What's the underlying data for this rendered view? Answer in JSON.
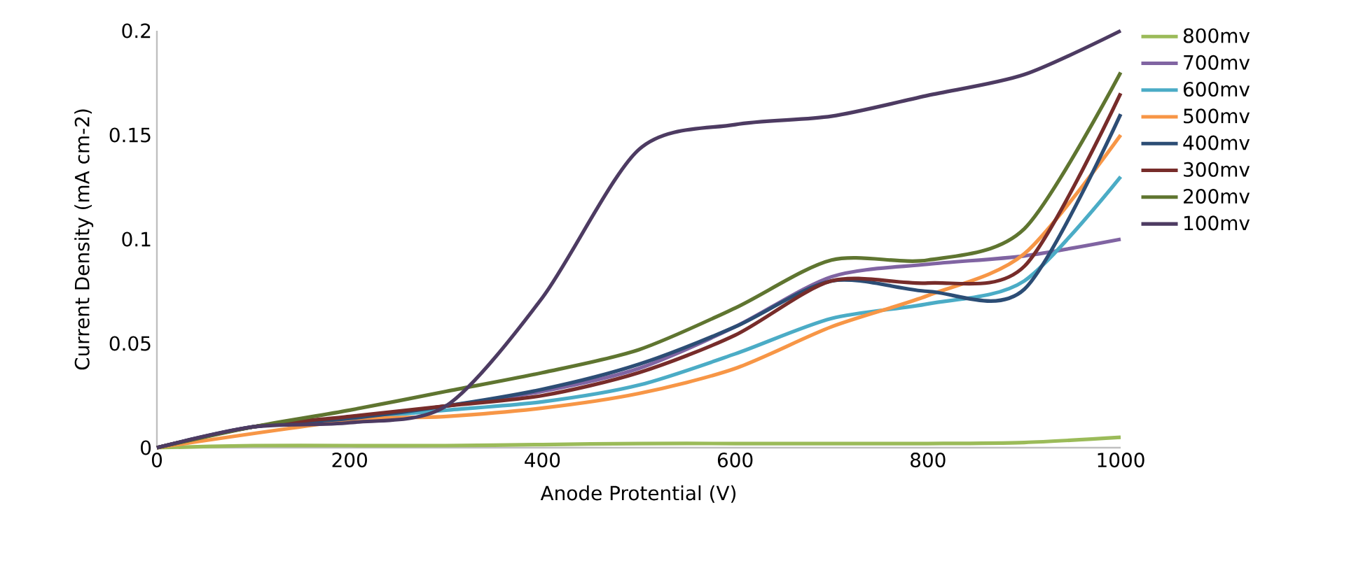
{
  "chart_data": {
    "type": "line",
    "xlabel": "Anode Protential (V)",
    "ylabel": "Current Density (mA cm-2)",
    "x": [
      0,
      100,
      200,
      300,
      400,
      500,
      600,
      700,
      800,
      900,
      1000
    ],
    "series": [
      {
        "name": "800mv",
        "color": "#9bbb59",
        "values": [
          0,
          0.001,
          0.001,
          0.001,
          0.0015,
          0.002,
          0.002,
          0.002,
          0.002,
          0.0025,
          0.005
        ]
      },
      {
        "name": "700mv",
        "color": "#8064a2",
        "values": [
          0,
          0.01,
          0.014,
          0.02,
          0.027,
          0.038,
          0.058,
          0.082,
          0.088,
          0.092,
          0.1
        ]
      },
      {
        "name": "600mv",
        "color": "#4bacc6",
        "values": [
          0,
          0.01,
          0.014,
          0.018,
          0.022,
          0.03,
          0.045,
          0.062,
          0.069,
          0.08,
          0.13
        ]
      },
      {
        "name": "500mv",
        "color": "#f79646",
        "values": [
          0,
          null,
          0.013,
          0.015,
          0.019,
          0.026,
          0.038,
          0.058,
          0.073,
          0.093,
          0.15
        ]
      },
      {
        "name": "400mv",
        "color": "#2c4d75",
        "values": [
          0,
          0.01,
          0.014,
          0.02,
          0.028,
          0.04,
          0.058,
          0.08,
          0.075,
          0.076,
          0.16
        ]
      },
      {
        "name": "300mv",
        "color": "#772c2a",
        "values": [
          0,
          0.01,
          0.015,
          0.02,
          0.025,
          0.036,
          0.054,
          0.08,
          0.079,
          0.087,
          0.17
        ]
      },
      {
        "name": "200mv",
        "color": "#5f7530",
        "values": [
          0,
          0.01,
          0.018,
          0.027,
          0.036,
          0.047,
          0.067,
          0.09,
          0.09,
          0.105,
          0.18
        ]
      },
      {
        "name": "100mv",
        "color": "#4d3b62",
        "values": [
          0,
          0.01,
          0.012,
          0.02,
          0.072,
          0.143,
          0.155,
          0.159,
          0.169,
          0.179,
          0.2
        ]
      }
    ],
    "xlim": [
      0,
      1000
    ],
    "ylim": [
      0,
      0.2
    ],
    "xticks": [
      0,
      200,
      400,
      600,
      800,
      1000
    ],
    "yticks": [
      0,
      0.05,
      0.1,
      0.15,
      0.2
    ],
    "legend": "right",
    "line_style": "solid",
    "marker": "none"
  }
}
